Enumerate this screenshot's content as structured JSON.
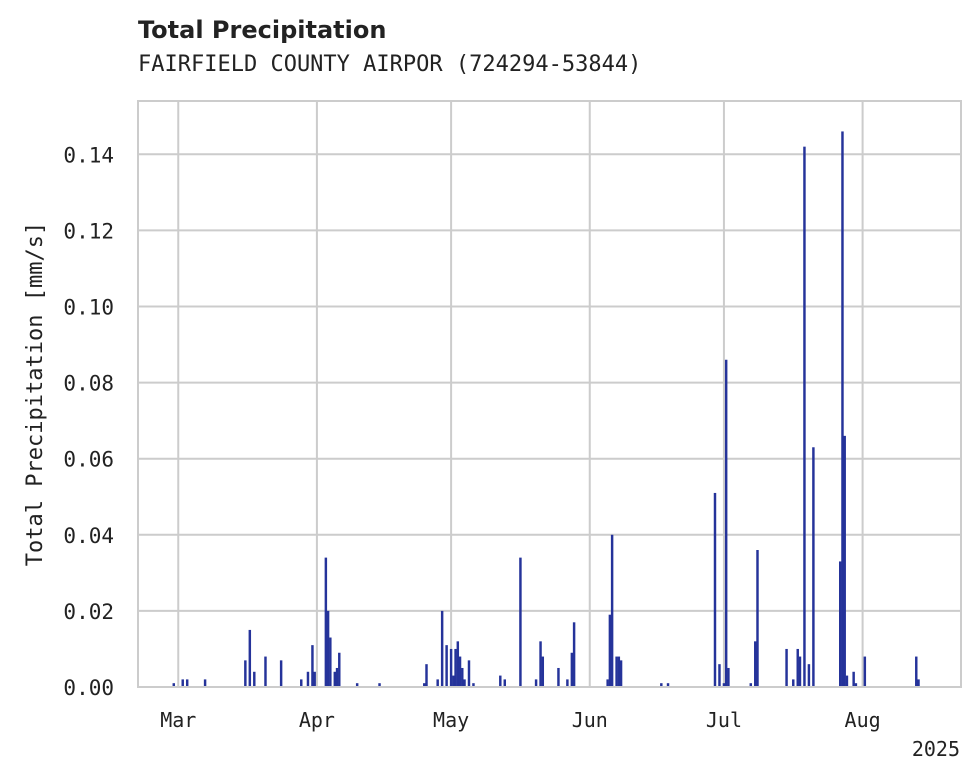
{
  "chart_data": {
    "type": "bar",
    "title": "Total Precipitation",
    "subtitle": "FAIRFIELD COUNTY AIRPOR (724294-53844)",
    "ylabel": "Total Precipitation [mm/s]",
    "xlabel": "",
    "year_label": "2025",
    "xlim": [
      "2025-02-20",
      "2025-08-23"
    ],
    "ylim": [
      0,
      0.154
    ],
    "grid": true,
    "bar_color": "#25339a",
    "grid_color": "#cccccc",
    "x_ticks": [
      {
        "date": "2025-03-01",
        "label": "Mar"
      },
      {
        "date": "2025-04-01",
        "label": "Apr"
      },
      {
        "date": "2025-05-01",
        "label": "May"
      },
      {
        "date": "2025-06-01",
        "label": "Jun"
      },
      {
        "date": "2025-07-01",
        "label": "Jul"
      },
      {
        "date": "2025-08-01",
        "label": "Aug"
      }
    ],
    "y_ticks": [
      {
        "value": 0.0,
        "label": "0.00"
      },
      {
        "value": 0.02,
        "label": "0.02"
      },
      {
        "value": 0.04,
        "label": "0.04"
      },
      {
        "value": 0.06,
        "label": "0.06"
      },
      {
        "value": 0.08,
        "label": "0.08"
      },
      {
        "value": 0.1,
        "label": "0.10"
      },
      {
        "value": 0.12,
        "label": "0.12"
      },
      {
        "value": 0.14,
        "label": "0.14"
      }
    ],
    "series": [
      {
        "x": [
          "2025-02-28T00:00",
          "2025-03-02T00:00",
          "2025-03-03T00:00",
          "2025-03-07T00:00",
          "2025-03-16T00:00",
          "2025-03-17T00:00",
          "2025-03-18T00:00",
          "2025-03-20T12:00",
          "2025-03-24T00:00",
          "2025-03-28T12:00",
          "2025-03-30T00:00",
          "2025-03-31T00:00",
          "2025-03-31T12:00",
          "2025-04-03T00:00",
          "2025-04-03T12:00",
          "2025-04-04T00:00",
          "2025-04-05T00:00",
          "2025-04-05T12:00",
          "2025-04-06T00:00",
          "2025-04-10T00:00",
          "2025-04-15T00:00",
          "2025-04-25T00:00",
          "2025-04-25T12:00",
          "2025-04-28T00:00",
          "2025-04-29T00:00",
          "2025-04-30T00:00",
          "2025-05-01T00:00",
          "2025-05-01T12:00",
          "2025-05-02T00:00",
          "2025-05-02T12:00",
          "2025-05-03T00:00",
          "2025-05-03T12:00",
          "2025-05-04T00:00",
          "2025-05-05T00:00",
          "2025-05-06T00:00",
          "2025-05-12T00:00",
          "2025-05-13T00:00",
          "2025-05-16T12:00",
          "2025-05-20T00:00",
          "2025-05-21T00:00",
          "2025-05-21T12:00",
          "2025-05-25T00:00",
          "2025-05-27T00:00",
          "2025-05-28T00:00",
          "2025-05-28T12:00",
          "2025-06-05T00:00",
          "2025-06-05T12:00",
          "2025-06-06T00:00",
          "2025-06-07T00:00",
          "2025-06-07T12:00",
          "2025-06-08T00:00",
          "2025-06-17T00:00",
          "2025-06-18T12:00",
          "2025-06-29T00:00",
          "2025-06-30T00:00",
          "2025-07-01T00:00",
          "2025-07-01T12:00",
          "2025-07-02T00:00",
          "2025-07-07T00:00",
          "2025-07-08T00:00",
          "2025-07-08T12:00",
          "2025-07-15T00:00",
          "2025-07-16T12:00",
          "2025-07-17T12:00",
          "2025-07-18T00:00",
          "2025-07-19T00:00",
          "2025-07-20T00:00",
          "2025-07-21T00:00",
          "2025-07-27T00:00",
          "2025-07-27T12:00",
          "2025-07-28T00:00",
          "2025-07-28T12:00",
          "2025-07-30T00:00",
          "2025-07-30T12:00",
          "2025-08-01T12:00",
          "2025-08-13T00:00",
          "2025-08-13T12:00"
        ],
        "values": [
          0.001,
          0.002,
          0.002,
          0.002,
          0.007,
          0.015,
          0.004,
          0.008,
          0.007,
          0.002,
          0.004,
          0.011,
          0.004,
          0.034,
          0.02,
          0.013,
          0.004,
          0.005,
          0.009,
          0.001,
          0.001,
          0.001,
          0.006,
          0.002,
          0.02,
          0.011,
          0.01,
          0.003,
          0.01,
          0.012,
          0.008,
          0.005,
          0.002,
          0.007,
          0.001,
          0.003,
          0.002,
          0.034,
          0.002,
          0.012,
          0.008,
          0.005,
          0.002,
          0.009,
          0.017,
          0.002,
          0.019,
          0.04,
          0.008,
          0.008,
          0.007,
          0.001,
          0.001,
          0.051,
          0.006,
          0.001,
          0.086,
          0.005,
          0.001,
          0.012,
          0.036,
          0.01,
          0.002,
          0.01,
          0.008,
          0.142,
          0.006,
          0.063,
          0.033,
          0.146,
          0.066,
          0.003,
          0.004,
          0.001,
          0.008,
          0.008,
          0.002
        ]
      }
    ]
  }
}
